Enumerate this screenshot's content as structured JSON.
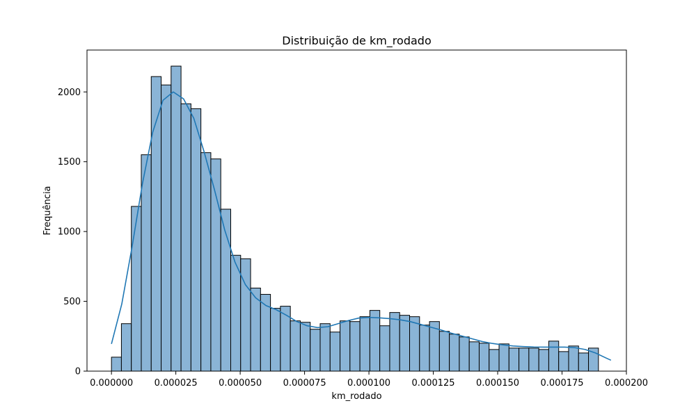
{
  "chart_data": {
    "type": "bar",
    "title": "Distribuição de km_rodado",
    "xlabel": "km_rodado",
    "ylabel": "Frequência",
    "xlim": [
      -9.5e-06,
      0.0002
    ],
    "ylim": [
      0,
      2300
    ],
    "x_ticks": [
      0,
      2.5e-05,
      5e-05,
      7.5e-05,
      0.0001,
      0.000125,
      0.00015,
      0.000175,
      0.0002
    ],
    "x_tick_labels": [
      "0.000000",
      "0.000025",
      "0.000050",
      "0.000075",
      "0.000100",
      "0.000125",
      "0.000150",
      "0.000175",
      "0.000200"
    ],
    "y_ticks": [
      0,
      500,
      1000,
      1500,
      2000
    ],
    "y_tick_labels": [
      "0",
      "500",
      "1000",
      "1500",
      "2000"
    ],
    "grid": false,
    "bin_start": 0,
    "bin_width": 3.86e-06,
    "values": [
      100,
      340,
      1180,
      1550,
      2110,
      2050,
      2185,
      1915,
      1880,
      1565,
      1520,
      1160,
      830,
      805,
      595,
      550,
      450,
      465,
      360,
      350,
      300,
      340,
      280,
      360,
      355,
      390,
      435,
      325,
      420,
      400,
      390,
      330,
      355,
      285,
      265,
      245,
      210,
      200,
      155,
      195,
      165,
      165,
      165,
      155,
      215,
      140,
      180,
      130,
      165
    ],
    "kde": {
      "x": [
        0,
        4e-06,
        8e-06,
        1.2e-05,
        1.6e-05,
        2e-05,
        2.4e-05,
        2.8e-05,
        3.2e-05,
        3.6e-05,
        4e-05,
        4.4e-05,
        4.8e-05,
        5.2e-05,
        5.6e-05,
        6e-05,
        6.4e-05,
        6.8e-05,
        7.2e-05,
        7.6e-05,
        8e-05,
        8.4e-05,
        8.8e-05,
        9.2e-05,
        9.6e-05,
        0.0001,
        0.000104,
        0.000108,
        0.000112,
        0.000116,
        0.00012,
        0.000124,
        0.000128,
        0.000132,
        0.000136,
        0.00014,
        0.000144,
        0.000148,
        0.000152,
        0.000156,
        0.00016,
        0.000164,
        0.000168,
        0.000172,
        0.000176,
        0.00018,
        0.000184,
        0.000188,
        0.000192,
        0.000194
      ],
      "y": [
        195,
        480,
        890,
        1340,
        1710,
        1940,
        2000,
        1950,
        1810,
        1570,
        1300,
        1010,
        780,
        620,
        525,
        470,
        440,
        400,
        355,
        325,
        312,
        318,
        340,
        362,
        380,
        385,
        382,
        376,
        368,
        355,
        335,
        315,
        295,
        272,
        252,
        232,
        212,
        198,
        188,
        180,
        176,
        173,
        172,
        172,
        172,
        168,
        155,
        130,
        95,
        78
      ]
    },
    "colors": {
      "bar_fill": "#8ab4d6",
      "bar_edge": "#000000",
      "kde_line": "#1f77b4"
    }
  }
}
